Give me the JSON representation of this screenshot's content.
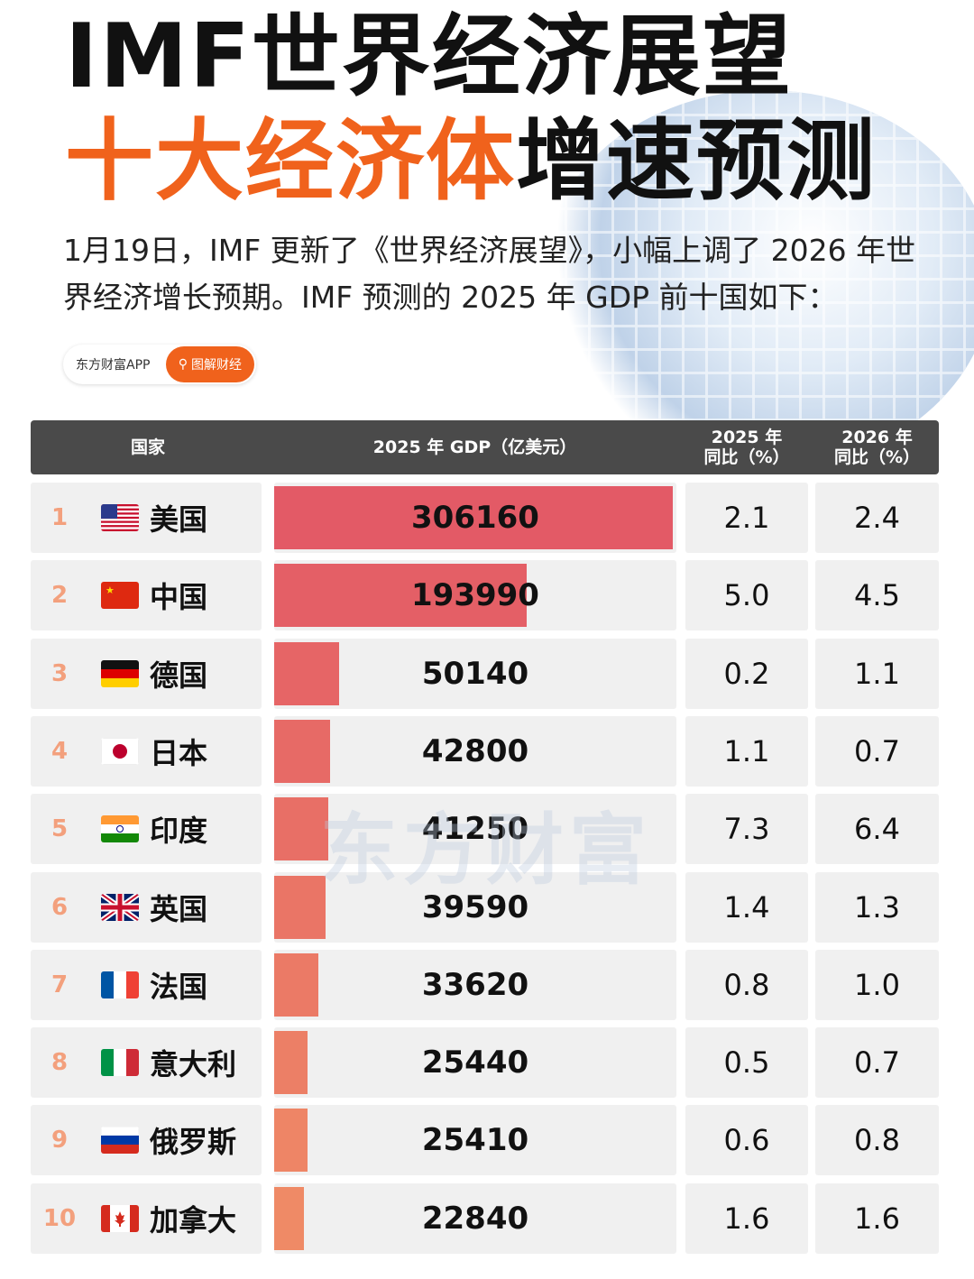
{
  "title": {
    "line1": "IMF世界经济展望",
    "line2_orange": "十大经济体",
    "line2_dark": "增速预测"
  },
  "intro": "1月19日，IMF 更新了《世界经济展望》，小幅上调了 2026 年世界经济增长预期。IMF 预测的 2025 年 GDP 前十国如下：",
  "source": {
    "app": "东方财富APP",
    "tag": "图解财经"
  },
  "watermark": "东方财富",
  "header": {
    "country": "国家",
    "gdp": "2025 年 GDP（亿美元）",
    "y2025_line1": "2025 年",
    "y2025_line2": "同比（%）",
    "y2026_line1": "2026 年",
    "y2026_line2": "同比（%）"
  },
  "colors": {
    "accent": "#f0621c",
    "bar_top": "#e35a66",
    "bar_bottom": "#ef8a66",
    "header_bg": "#4a4a4a"
  },
  "chart_data": {
    "type": "table",
    "columns": [
      "国家",
      "2025 年 GDP（亿美元）",
      "2025 年同比（%）",
      "2026 年同比（%）"
    ],
    "rows": [
      {
        "rank": "1",
        "flag": "us-flag",
        "country": "美国",
        "gdp": 306160,
        "gdp_label": "306160",
        "y2025": "2.1",
        "y2026": "2.4"
      },
      {
        "rank": "2",
        "flag": "cn-flag",
        "country": "中国",
        "gdp": 193990,
        "gdp_label": "193990",
        "y2025": "5.0",
        "y2026": "4.5"
      },
      {
        "rank": "3",
        "flag": "de-flag",
        "country": "德国",
        "gdp": 50140,
        "gdp_label": "50140",
        "y2025": "0.2",
        "y2026": "1.1"
      },
      {
        "rank": "4",
        "flag": "jp-flag",
        "country": "日本",
        "gdp": 42800,
        "gdp_label": "42800",
        "y2025": "1.1",
        "y2026": "0.7"
      },
      {
        "rank": "5",
        "flag": "in-flag",
        "country": "印度",
        "gdp": 41250,
        "gdp_label": "41250",
        "y2025": "7.3",
        "y2026": "6.4"
      },
      {
        "rank": "6",
        "flag": "gb-flag",
        "country": "英国",
        "gdp": 39590,
        "gdp_label": "39590",
        "y2025": "1.4",
        "y2026": "1.3"
      },
      {
        "rank": "7",
        "flag": "fr-flag",
        "country": "法国",
        "gdp": 33620,
        "gdp_label": "33620",
        "y2025": "0.8",
        "y2026": "1.0"
      },
      {
        "rank": "8",
        "flag": "it-flag",
        "country": "意大利",
        "gdp": 25440,
        "gdp_label": "25440",
        "y2025": "0.5",
        "y2026": "0.7"
      },
      {
        "rank": "9",
        "flag": "ru-flag",
        "country": "俄罗斯",
        "gdp": 25410,
        "gdp_label": "25410",
        "y2025": "0.6",
        "y2026": "0.8"
      },
      {
        "rank": "10",
        "flag": "ca-flag",
        "country": "加拿大",
        "gdp": 22840,
        "gdp_label": "22840",
        "y2025": "1.6",
        "y2026": "1.6"
      }
    ]
  }
}
